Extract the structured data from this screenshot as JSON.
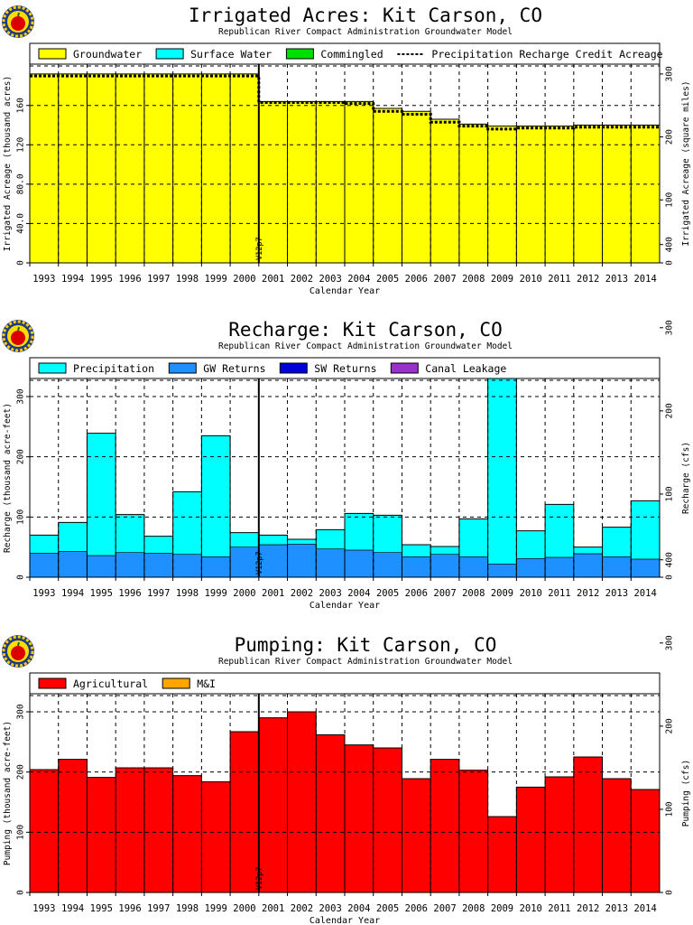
{
  "charts": [
    {
      "type": "bar",
      "title": "Irrigated Acres: Kit Carson, CO",
      "subtitle": "Republican River Compact Administration Groundwater Model",
      "xlabel": "Calendar Year",
      "ylabel": "Irrigated Acreage (thousand acres)",
      "y2label": "Irrigated Acreage (square miles)",
      "y_ticks": [
        "0",
        "40.0",
        "80.0",
        "120",
        "160"
      ],
      "y_tick_values": [
        0,
        40,
        80,
        120,
        160
      ],
      "y2_ticks": [
        "0",
        "100",
        "200",
        "300"
      ],
      "y2_tick_values": [
        0,
        100,
        200,
        300
      ],
      "ylim": [
        0,
        202
      ],
      "y2_factor": 0.64,
      "marker_label": "V12p7",
      "marker_year": 2000.5,
      "legend": [
        {
          "label": "Groundwater",
          "color": "#ffff00",
          "kind": "box"
        },
        {
          "label": "Surface Water",
          "color": "#00ffff",
          "kind": "box"
        },
        {
          "label": "Commingled",
          "color": "#00e000",
          "kind": "box"
        },
        {
          "label": "Precipitation Recharge Credit Acreage",
          "color": "#000000",
          "kind": "dash"
        }
      ],
      "categories": [
        "1993",
        "1994",
        "1995",
        "1996",
        "1997",
        "1998",
        "1999",
        "2000",
        "2001",
        "2002",
        "2003",
        "2004",
        "2005",
        "2006",
        "2007",
        "2008",
        "2009",
        "2010",
        "2011",
        "2012",
        "2013",
        "2014"
      ],
      "series": [
        {
          "name": "Groundwater",
          "color": "#ffff00",
          "values": [
            192,
            192,
            192,
            192,
            192,
            192,
            192,
            192,
            164,
            164,
            164,
            164,
            157,
            154,
            146,
            141,
            139,
            139,
            139,
            140,
            140,
            140
          ]
        }
      ],
      "credit_line": [
        190,
        190,
        190,
        190,
        190,
        190,
        190,
        190,
        163,
        163,
        163,
        162,
        154,
        151,
        143,
        139,
        136,
        137,
        137,
        138,
        138,
        138
      ]
    },
    {
      "type": "bar",
      "title": "Recharge: Kit Carson, CO",
      "subtitle": "Republican River Compact Administration Groundwater Model",
      "xlabel": "Calendar Year",
      "ylabel": "Recharge (thousand acre-feet)",
      "y2label": "Recharge (cfs)",
      "y_ticks": [
        "0",
        "100",
        "200",
        "300"
      ],
      "y_tick_values": [
        0,
        100,
        200,
        300
      ],
      "y2_ticks": [
        "0",
        "100",
        "200",
        "300",
        "400"
      ],
      "y2_tick_values": [
        0,
        100,
        200,
        300,
        400
      ],
      "ylim": [
        0,
        330
      ],
      "y2_factor": 1.381,
      "marker_label": "V12p7",
      "marker_year": 2000.5,
      "legend": [
        {
          "label": "Precipitation",
          "color": "#00ffff",
          "kind": "box"
        },
        {
          "label": "GW Returns",
          "color": "#1e90ff",
          "kind": "box"
        },
        {
          "label": "SW Returns",
          "color": "#0000dd",
          "kind": "box"
        },
        {
          "label": "Canal Leakage",
          "color": "#9932cc",
          "kind": "box"
        }
      ],
      "categories": [
        "1993",
        "1994",
        "1995",
        "1996",
        "1997",
        "1998",
        "1999",
        "2000",
        "2001",
        "2002",
        "2003",
        "2004",
        "2005",
        "2006",
        "2007",
        "2008",
        "2009",
        "2010",
        "2011",
        "2012",
        "2013",
        "2014"
      ],
      "series": [
        {
          "name": "GW Returns",
          "color": "#1e90ff",
          "values": [
            40,
            43,
            36,
            41,
            40,
            38,
            34,
            50,
            54,
            55,
            47,
            45,
            41,
            34,
            38,
            34,
            22,
            31,
            33,
            39,
            34,
            30
          ]
        },
        {
          "name": "Precipitation",
          "color": "#00ffff",
          "values": [
            30,
            48,
            203,
            63,
            28,
            104,
            201,
            24,
            16,
            8,
            32,
            61,
            62,
            20,
            13,
            63,
            308,
            46,
            88,
            11,
            49,
            97
          ]
        }
      ]
    },
    {
      "type": "bar",
      "title": "Pumping: Kit Carson, CO",
      "subtitle": "Republican River Compact Administration Groundwater Model",
      "xlabel": "Calendar Year",
      "ylabel": "Pumping (thousand acre-feet)",
      "y2label": "Pumping (cfs)",
      "y_ticks": [
        "0",
        "100",
        "200",
        "300"
      ],
      "y_tick_values": [
        0,
        100,
        200,
        300
      ],
      "y2_ticks": [
        "0",
        "100",
        "200",
        "300",
        "400"
      ],
      "y2_tick_values": [
        0,
        100,
        200,
        300,
        400
      ],
      "ylim": [
        0,
        330
      ],
      "y2_factor": 1.381,
      "marker_label": "V12p7",
      "marker_year": 2000.5,
      "legend": [
        {
          "label": "Agricultural",
          "color": "#ff0000",
          "kind": "box"
        },
        {
          "label": "M&I",
          "color": "#ffa500",
          "kind": "box"
        }
      ],
      "categories": [
        "1993",
        "1994",
        "1995",
        "1996",
        "1997",
        "1998",
        "1999",
        "2000",
        "2001",
        "2002",
        "2003",
        "2004",
        "2005",
        "2006",
        "2007",
        "2008",
        "2009",
        "2010",
        "2011",
        "2012",
        "2013",
        "2014"
      ],
      "series": [
        {
          "name": "Agricultural",
          "color": "#ff0000",
          "values": [
            204,
            221,
            191,
            207,
            207,
            194,
            184,
            267,
            290,
            300,
            262,
            245,
            240,
            189,
            221,
            203,
            126,
            175,
            192,
            225,
            189,
            171
          ]
        }
      ]
    }
  ]
}
